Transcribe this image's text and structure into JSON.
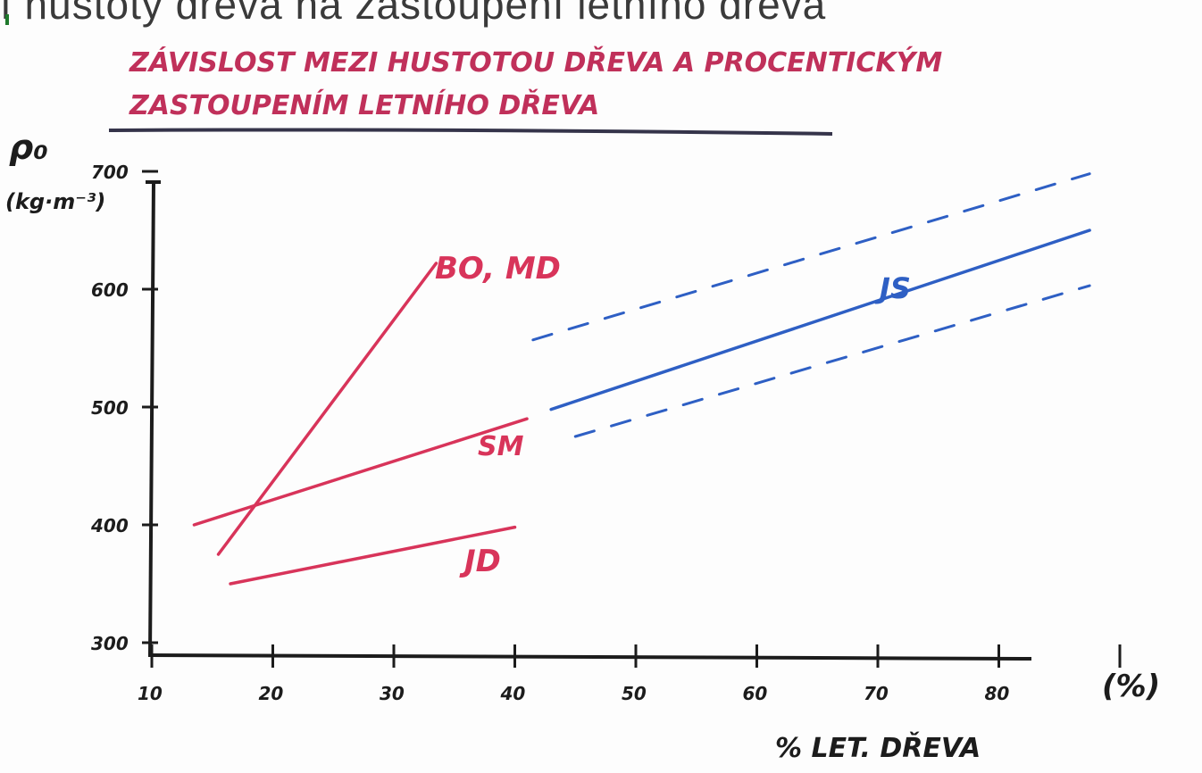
{
  "top_caption": "í hustoty dreva na zastoupení letního dreva",
  "chart_data": {
    "type": "line",
    "title_line1": "ZÁVISLOST MEZI HUSTOTOU DŘEVA A PROCENTICKÝM",
    "title_line2": "ZASTOUPENÍM LETNÍHO DŘEVA",
    "ylabel_symbol": "ρ₀",
    "ylabel_unit": "(kg·m⁻³)",
    "xlabel_unit": "(%)",
    "xlabel": "% LET. DŘEVA",
    "x_ticks": [
      "10",
      "20",
      "30",
      "40",
      "50",
      "60",
      "70",
      "80"
    ],
    "y_ticks": [
      "300",
      "400",
      "500",
      "600",
      "700"
    ],
    "xlim": [
      10,
      90
    ],
    "ylim": [
      300,
      700
    ],
    "colors": {
      "red": "#d8345a",
      "blue": "#2e5fc4",
      "ink": "#1c1c1c",
      "title": "#c0305a"
    },
    "series": [
      {
        "name": "BO, MD",
        "color": "#d8345a",
        "style": "solid",
        "x": [
          15.5,
          33.5
        ],
        "y": [
          375,
          622
        ]
      },
      {
        "name": "SM",
        "color": "#d8345a",
        "style": "solid",
        "x": [
          13.5,
          41
        ],
        "y": [
          400,
          490
        ]
      },
      {
        "name": "JD",
        "color": "#d8345a",
        "style": "solid",
        "x": [
          16.5,
          40
        ],
        "y": [
          350,
          398
        ]
      },
      {
        "name": "JS",
        "color": "#2e5fc4",
        "style": "solid",
        "x": [
          43,
          87.5
        ],
        "y": [
          498,
          650
        ]
      },
      {
        "name": "",
        "color": "#2e5fc4",
        "style": "dashed",
        "x": [
          41.5,
          87.5
        ],
        "y": [
          557,
          698
        ]
      },
      {
        "name": "",
        "color": "#2e5fc4",
        "style": "dashed",
        "x": [
          45,
          87.5
        ],
        "y": [
          475,
          603
        ]
      }
    ]
  }
}
